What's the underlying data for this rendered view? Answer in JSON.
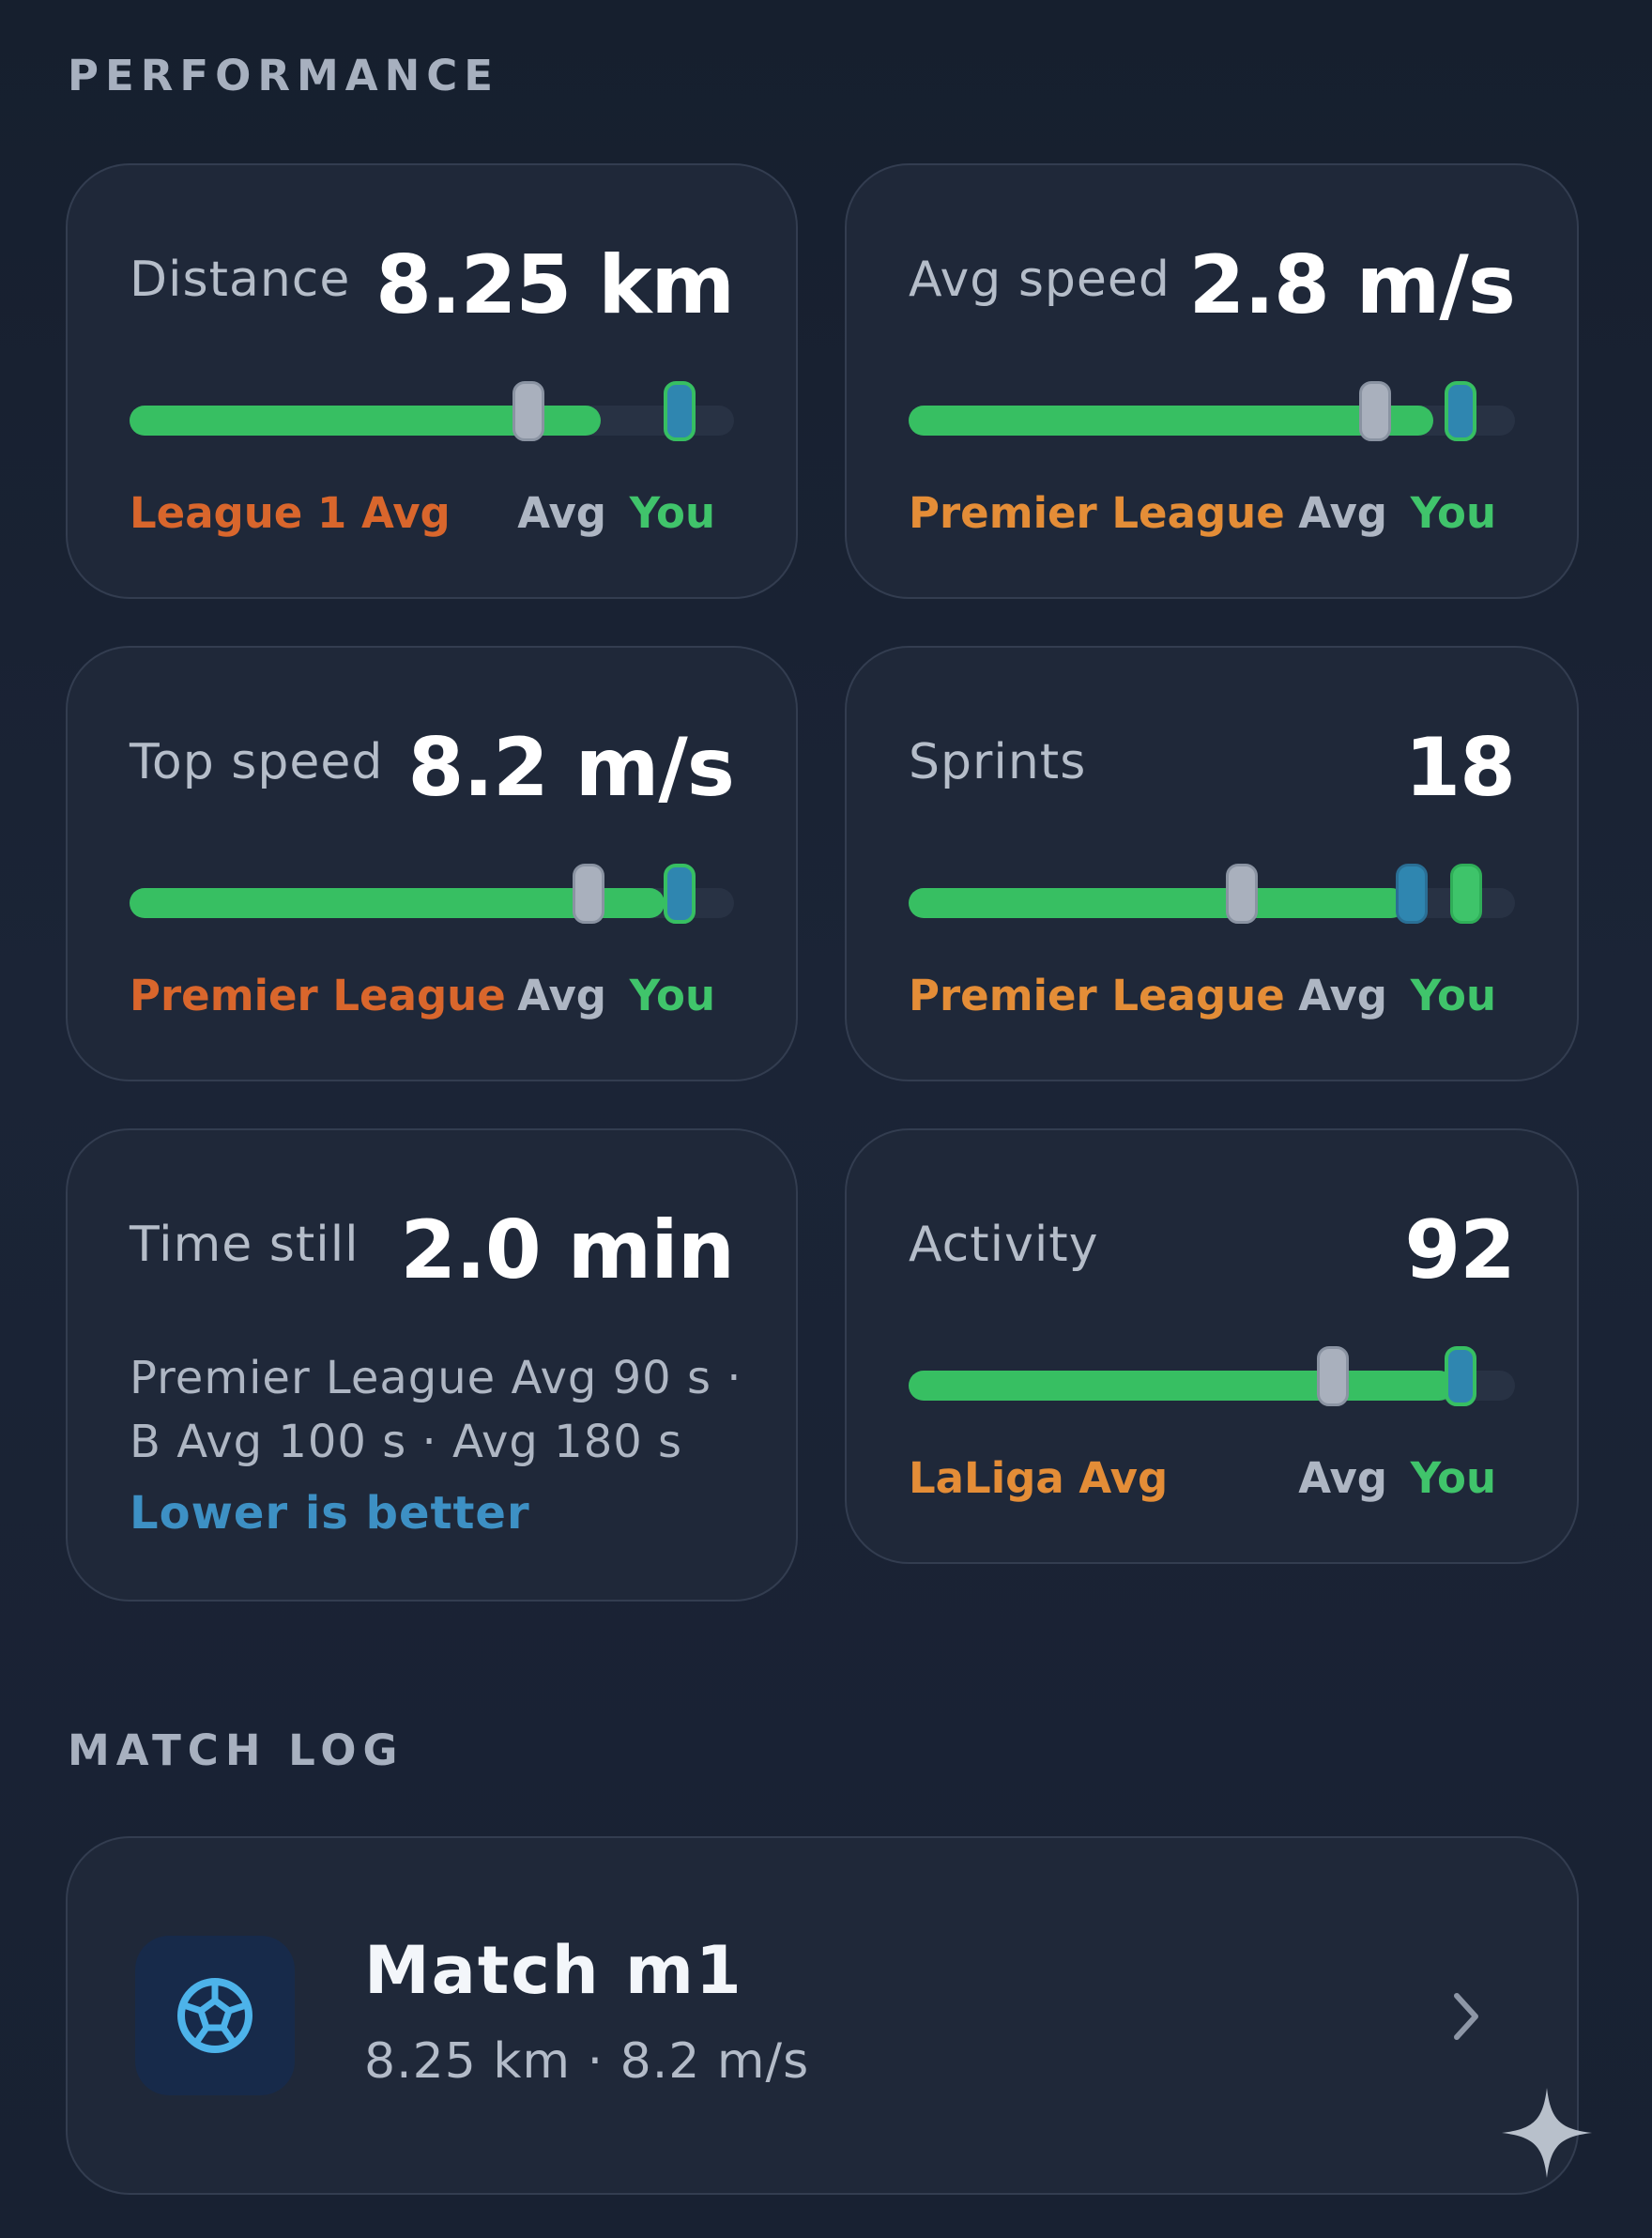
{
  "performance": {
    "title": "PERFORMANCE",
    "cards": [
      {
        "label": "Distance",
        "value": "8.25 km",
        "league": "League 1 Avg",
        "avg_label": "Avg",
        "you_label": "You",
        "fill": 0.78,
        "league_pos": 0.66,
        "you_pos": 0.91
      },
      {
        "label": "Avg speed",
        "value": "2.8 m/s",
        "league": "Premier League",
        "avg_label": "Avg",
        "you_label": "You",
        "fill": 0.865,
        "league_pos": 0.77,
        "you_pos": 0.91
      },
      {
        "label": "Top speed",
        "value": "8.2 m/s",
        "league": "Premier League",
        "avg_label": "Avg",
        "you_label": "You",
        "fill": 0.885,
        "league_pos": 0.76,
        "you_pos": 0.91
      },
      {
        "label": "Sprints",
        "value": "18",
        "league": "Premier League",
        "avg_label": "Avg",
        "you_label": "You",
        "fill": 0.82,
        "league_pos": 0.55,
        "avg_pos": 0.83,
        "you_pos": 0.92
      },
      {
        "label": "Time still",
        "value": "2.0 min",
        "description": "Premier League Avg 90 s · B Avg 100 s · Avg 180 s",
        "note": "Lower is better"
      },
      {
        "label": "Activity",
        "value": "92",
        "league": "LaLiga Avg",
        "avg_label": "Avg",
        "you_label": "You",
        "fill": 0.9,
        "league_pos": 0.7,
        "you_pos": 0.91
      }
    ]
  },
  "match_log": {
    "title": "MATCH LOG",
    "items": [
      {
        "title": "Match m1",
        "subtitle": "8.25 km · 8.2 m/s",
        "icon": "soccer-ball-icon"
      }
    ]
  },
  "colors": {
    "green": "#37bf62",
    "orange": "#d9662c",
    "blue": "#3d90c4",
    "card": "#1f2839"
  }
}
